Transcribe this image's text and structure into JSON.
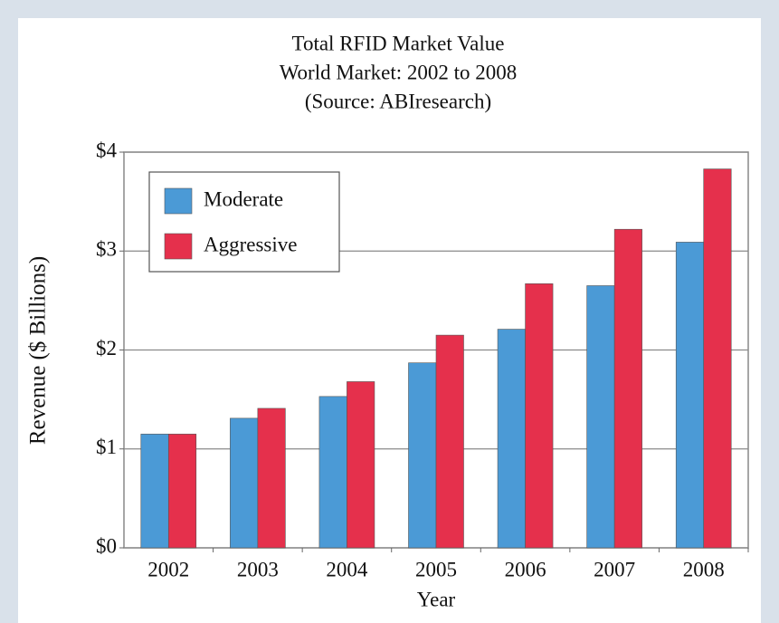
{
  "chart_data": {
    "type": "bar",
    "title": [
      "Total RFID Market Value",
      "World Market: 2002 to 2008",
      "(Source: ABIresearch)"
    ],
    "x_label": "Year",
    "y_label": "Revenue ($ Billions)",
    "categories": [
      "2002",
      "2003",
      "2004",
      "2005",
      "2006",
      "2007",
      "2008"
    ],
    "series": [
      {
        "name": "Moderate",
        "color": "#4b9ad6",
        "values": [
          1.15,
          1.31,
          1.53,
          1.87,
          2.21,
          2.65,
          3.09
        ]
      },
      {
        "name": "Aggressive",
        "color": "#e5304c",
        "values": [
          1.15,
          1.41,
          1.68,
          2.15,
          2.67,
          3.22,
          3.83
        ]
      }
    ],
    "ylim": [
      0,
      4
    ],
    "yticks": [
      {
        "value": 0,
        "label": "$0"
      },
      {
        "value": 1,
        "label": "$1"
      },
      {
        "value": 2,
        "label": "$2"
      },
      {
        "value": 3,
        "label": "$3"
      },
      {
        "value": 4,
        "label": "$4"
      }
    ],
    "grid": true,
    "legend": "upper left"
  }
}
